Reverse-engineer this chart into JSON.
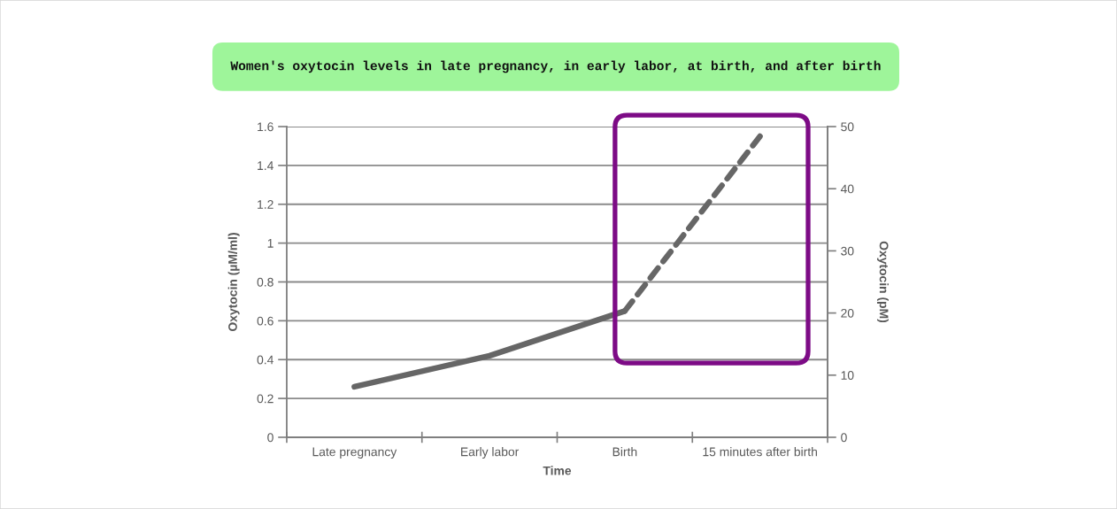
{
  "chart_data": {
    "type": "line",
    "title": "Women's oxytocin levels in late pregnancy, in early labor, at birth, and after birth",
    "xlabel": "Time",
    "ylabel": "Oxytocin (µM/ml)",
    "y2label": "Oxytocin (pM)",
    "categories": [
      "Late pregnancy",
      "Early labor",
      "Birth",
      "15 minutes after birth"
    ],
    "series": [
      {
        "color": "#666666",
        "line_style": "solid",
        "values": [
          0.26,
          0.42,
          0.65,
          null
        ]
      },
      {
        "color": "#666666",
        "line_style": "dashed",
        "values": [
          null,
          null,
          0.65,
          1.55
        ]
      }
    ],
    "ylim": [
      0,
      1.6
    ],
    "yticks": [
      0,
      0.2,
      0.4,
      0.6,
      0.8,
      1,
      1.2,
      1.4,
      1.6
    ],
    "y2lim": [
      0,
      50
    ],
    "y2ticks": [
      0,
      10,
      20,
      30,
      40,
      50
    ],
    "grid": "y",
    "marker": "none"
  }
}
